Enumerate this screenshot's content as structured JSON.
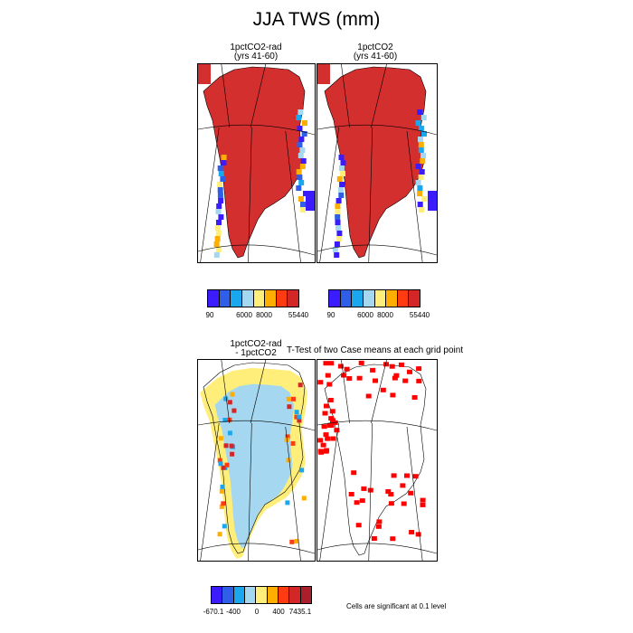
{
  "title": "JJA TWS (mm)",
  "colors": {
    "palette": [
      "#3a1cff",
      "#2f5fe8",
      "#1aa7ee",
      "#a6d7f0",
      "#ffee7a",
      "#ffae00",
      "#ff3b12",
      "#d32626",
      "#ab1f2d"
    ],
    "land": "#d32f2f",
    "sig": "#ff0000",
    "edge_blue": "#4a1cff"
  },
  "chart_data": [
    {
      "type": "heatmap",
      "title_line1": "1pctCO2-rad",
      "title_line2": "(yrs 41-60)",
      "colorbar_ticks": [
        "90",
        "6000",
        "8000",
        "55440"
      ]
    },
    {
      "type": "heatmap",
      "title_line1": "1pctCO2",
      "title_line2": "(yrs 41-60)",
      "colorbar_ticks": [
        "90",
        "6000",
        "8000",
        "55440"
      ]
    },
    {
      "type": "heatmap",
      "title_line1": "1pctCO2-rad",
      "title_line2": "- 1pctCO2",
      "colorbar_ticks": [
        "-670.1",
        "-400",
        "0",
        "400",
        "7435.1"
      ]
    },
    {
      "type": "heatmap",
      "title": "T-Test of two Case means at each grid point",
      "note": "Cells are significant at 0.1 level"
    }
  ]
}
